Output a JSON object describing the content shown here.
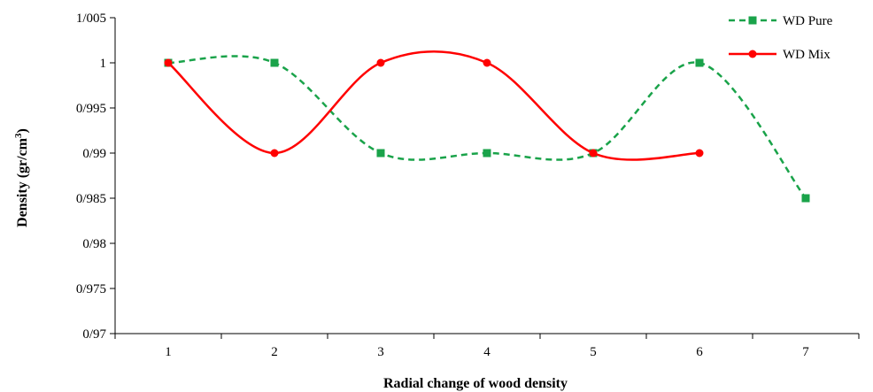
{
  "chart_data": {
    "type": "line",
    "xlabel": "Radial change of wood density",
    "ylabel": {
      "prefix": "Density (gr/cm",
      "superscript": "3",
      "suffix": ")"
    },
    "x": [
      1,
      2,
      3,
      4,
      5,
      6,
      7
    ],
    "x_tick_labels": [
      "1",
      "2",
      "3",
      "4",
      "5",
      "6",
      "7"
    ],
    "ylim": [
      0.97,
      1.005
    ],
    "y_ticks": [
      0.97,
      0.975,
      0.98,
      0.985,
      0.99,
      0.995,
      1.0,
      1.005
    ],
    "y_tick_labels": [
      "0/97",
      "0/975",
      "0/98",
      "0/985",
      "0/99",
      "0/995",
      "1",
      "1/005"
    ],
    "grid": false,
    "legend_position": "top-right",
    "series": [
      {
        "name": "WD Pure",
        "x": [
          1,
          2,
          3,
          4,
          5,
          6,
          7
        ],
        "values": [
          1.0,
          1.0,
          0.99,
          0.99,
          0.99,
          1.0,
          0.985
        ],
        "color": "#1aa34a",
        "line_style": "dashed",
        "marker": "square",
        "smooth": true
      },
      {
        "name": "WD Mix",
        "x": [
          1,
          2,
          3,
          4,
          5,
          6
        ],
        "values": [
          1.0,
          0.99,
          1.0,
          1.0,
          0.99,
          0.99
        ],
        "color": "#ff0000",
        "line_style": "solid",
        "marker": "circle",
        "smooth": true
      }
    ]
  }
}
